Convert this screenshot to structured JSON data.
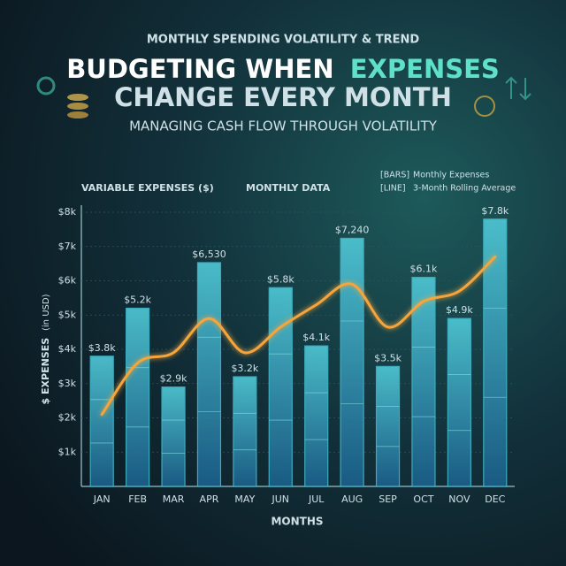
{
  "chart_data": {
    "type": "bar",
    "kicker": "MONTHLY SPENDING VOLATILITY & TREND",
    "title_line1": [
      "BUDGETING WHEN",
      "EXPENSES"
    ],
    "title_line2": "CHANGE EVERY MONTH",
    "subtitle": "MANAGING CASH FLOW THROUGH VOLATILITY",
    "panel_label": "VARIABLE EXPENSES ($)",
    "panel_note": "MONTHLY DATA",
    "y_label": "$ EXPENSES",
    "y_label_unit": "(in USD)",
    "x_label": "MONTHS",
    "categories": [
      "JAN",
      "FEB",
      "MAR",
      "APR",
      "MAY",
      "JUN",
      "JUL",
      "AUG",
      "SEP",
      "OCT",
      "NOV",
      "DEC"
    ],
    "series": [
      {
        "name": "Monthly Expenses",
        "tag": "[BARS]",
        "color": "#3fb6c9",
        "values": [
          3800,
          5200,
          2900,
          6530,
          3200,
          5800,
          4100,
          7240,
          3500,
          6100,
          4900,
          7800
        ],
        "value_labels": [
          "$3.8k",
          "$5.2k",
          "$2.9k",
          "$6,530",
          "$3.2k",
          "$5.8k",
          "$4.1k",
          "$7,240",
          "$3.5k",
          "$6.1k",
          "$4.9k",
          "$7.8k"
        ]
      },
      {
        "name": "3-Month Rolling Average",
        "tag": "[LINE]",
        "type": "line",
        "color": "#f5a53a",
        "values": [
          2100,
          3600,
          3900,
          4900,
          3900,
          4650,
          5300,
          5900,
          4650,
          5400,
          5700,
          6700
        ]
      }
    ],
    "ylim": [
      0,
      8000
    ],
    "yticks": [
      {
        "value": 1000,
        "label": "$1k"
      },
      {
        "value": 2000,
        "label": "$2k"
      },
      {
        "value": 3000,
        "label": "$3k"
      },
      {
        "value": 4000,
        "label": "$4k"
      },
      {
        "value": 5000,
        "label": "$5k"
      },
      {
        "value": 6000,
        "label": "$6k"
      },
      {
        "value": 7000,
        "label": "$7k"
      },
      {
        "value": 8000,
        "label": "$8k"
      }
    ],
    "grid": true
  }
}
